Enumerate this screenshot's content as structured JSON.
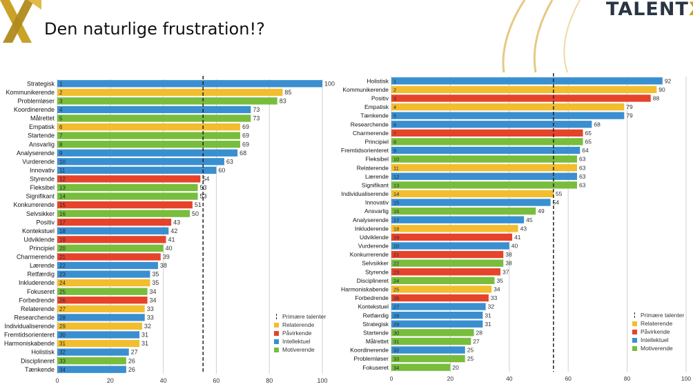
{
  "slide": {
    "title": "Den naturlige frustration!?"
  },
  "brand": {
    "name": "TALENT",
    "x": "X"
  },
  "icons": {
    "logo": "gold-x-logo-icon",
    "decoration": "gold-arc-lines-icon"
  },
  "colors": {
    "Relaterende": "#f2bd2e",
    "Påvirkende": "#e6432b",
    "Intellektuel": "#3a8fd0",
    "Motiverende": "#78bd3c"
  },
  "legend": {
    "primary": "Primære talenter",
    "items": [
      "Relaterende",
      "Påvirkende",
      "Intellektuel",
      "Motiverende"
    ]
  },
  "chart_data": [
    {
      "type": "bar",
      "orientation": "horizontal",
      "xlim": [
        0,
        100
      ],
      "xticks": [
        0,
        20,
        40,
        60,
        80,
        100
      ],
      "threshold": 55,
      "grid": true,
      "categories": [
        "Strategisk",
        "Kommunikerende",
        "Problemløser",
        "Koordinerende",
        "Målrettet",
        "Empatisk",
        "Startende",
        "Ansvarlig",
        "Analyserende",
        "Vurderende",
        "Innovativ",
        "Styrende",
        "Fleksibel",
        "Signifikant",
        "Konkurrerende",
        "Selvsikker",
        "Positiv",
        "Kontekstuel",
        "Udviklende",
        "Principiel",
        "Charmerende",
        "Lærende",
        "Retfærdig",
        "Inkluderende",
        "Fokuseret",
        "Forbedrende",
        "Relaterende",
        "Researchende",
        "Individualiserende",
        "Fremtidsorienteret",
        "Harmoniskabende",
        "Holistisk",
        "Disciplineret",
        "Tænkende"
      ],
      "ranks": [
        "1",
        "2",
        "3",
        "4",
        "5",
        "6",
        "7",
        "8",
        "9",
        "10",
        "11",
        "12",
        "13",
        "14",
        "15",
        "16",
        "17",
        "18",
        "19",
        "20",
        "21",
        "22",
        "23",
        "24",
        "25",
        "26",
        "27",
        "28",
        "29",
        "30",
        "31",
        "32",
        "33",
        "34"
      ],
      "values": [
        100,
        85,
        83,
        73,
        73,
        69,
        69,
        69,
        68,
        63,
        60,
        54,
        53,
        53,
        51,
        50,
        43,
        42,
        41,
        40,
        39,
        38,
        35,
        35,
        34,
        34,
        33,
        33,
        32,
        31,
        31,
        27,
        26,
        26
      ],
      "value_labels": [
        "100",
        "85",
        "83",
        "73",
        "73",
        "69",
        "69",
        "69",
        "68",
        "63",
        "60",
        "54",
        "53",
        "53",
        "51",
        "50",
        "43",
        "42",
        "41",
        "40",
        "39",
        "38",
        "35",
        "35",
        "34",
        "34",
        "33",
        "33",
        "32",
        "31",
        "31",
        "27",
        "26",
        "26"
      ],
      "groups": [
        "Intellektuel",
        "Relaterende",
        "Motiverende",
        "Intellektuel",
        "Motiverende",
        "Relaterende",
        "Motiverende",
        "Motiverende",
        "Intellektuel",
        "Intellektuel",
        "Intellektuel",
        "Påvirkende",
        "Motiverende",
        "Motiverende",
        "Påvirkende",
        "Motiverende",
        "Påvirkende",
        "Intellektuel",
        "Påvirkende",
        "Motiverende",
        "Påvirkende",
        "Intellektuel",
        "Intellektuel",
        "Relaterende",
        "Motiverende",
        "Påvirkende",
        "Relaterende",
        "Intellektuel",
        "Relaterende",
        "Intellektuel",
        "Relaterende",
        "Intellektuel",
        "Motiverende",
        "Intellektuel"
      ]
    },
    {
      "type": "bar",
      "orientation": "horizontal",
      "xlim": [
        0,
        100
      ],
      "xticks": [
        0,
        20,
        40,
        60,
        80,
        100
      ],
      "threshold": 55,
      "grid": true,
      "categories": [
        "Holistisk",
        "Kommunikerende",
        "Positiv",
        "Empatisk",
        "Tænkende",
        "Researchende",
        "Charmerende",
        "Principiel",
        "Fremtidsorienteret",
        "Fleksibel",
        "Relaterende",
        "Lærende",
        "Signifikant",
        "Individualiserende",
        "Innovativ",
        "Ansvarlig",
        "Analyserende",
        "Inkluderende",
        "Udviklende",
        "Vurderende",
        "Konkurrerende",
        "Selvsikker",
        "Styrende",
        "Disciplineret",
        "Harmoniskabende",
        "Forbedrende",
        "Kontekstuel",
        "Retfærdig",
        "Strategisk",
        "Startende",
        "Målrettet",
        "Koordinerende",
        "Problemløser",
        "Fokuseret"
      ],
      "ranks": [
        "1",
        "2",
        "3",
        "4",
        "5",
        "6",
        "7",
        "8",
        "9",
        "10",
        "11",
        "12",
        "13",
        "14",
        "15",
        "16",
        "17",
        "18",
        "19",
        "20",
        "21",
        "22",
        "23",
        "24",
        "25",
        "26",
        "27",
        "28",
        "29",
        "30",
        "31",
        "32",
        "33",
        "34"
      ],
      "values": [
        92,
        90,
        88,
        79,
        79,
        68,
        65,
        65,
        64,
        63,
        63,
        63,
        63,
        55,
        54,
        49,
        45,
        43,
        41,
        40,
        38,
        38,
        37,
        35,
        34,
        33,
        32,
        31,
        31,
        28,
        27,
        25,
        25,
        20
      ],
      "value_labels": [
        "92",
        "90",
        "88",
        "79",
        "79",
        "68",
        "65",
        "65",
        "64",
        "63",
        "63",
        "63",
        "63",
        "55",
        "54",
        "49",
        "45",
        "43",
        "41",
        "40",
        "38",
        "38",
        "37",
        "35",
        "34",
        "33",
        "32",
        "31",
        "31",
        "28",
        "27",
        "25",
        "25",
        "20"
      ],
      "groups": [
        "Intellektuel",
        "Relaterende",
        "Påvirkende",
        "Relaterende",
        "Intellektuel",
        "Intellektuel",
        "Påvirkende",
        "Motiverende",
        "Intellektuel",
        "Motiverende",
        "Relaterende",
        "Intellektuel",
        "Motiverende",
        "Relaterende",
        "Intellektuel",
        "Motiverende",
        "Intellektuel",
        "Relaterende",
        "Påvirkende",
        "Intellektuel",
        "Påvirkende",
        "Motiverende",
        "Påvirkende",
        "Motiverende",
        "Relaterende",
        "Påvirkende",
        "Intellektuel",
        "Intellektuel",
        "Intellektuel",
        "Motiverende",
        "Motiverende",
        "Intellektuel",
        "Motiverende",
        "Motiverende"
      ]
    }
  ]
}
